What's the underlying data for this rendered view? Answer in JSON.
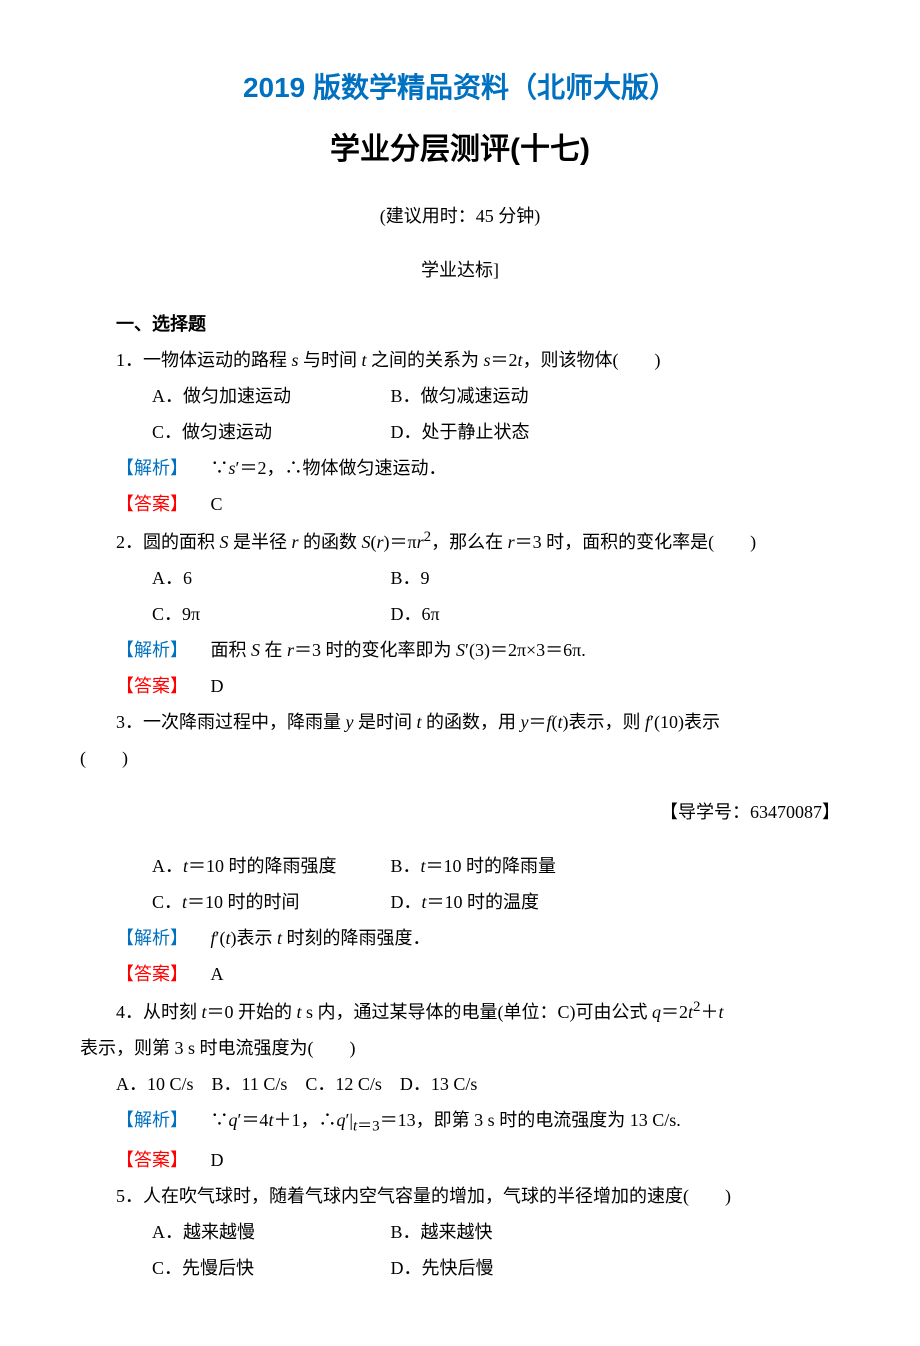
{
  "colors": {
    "blue": "#0070c0",
    "red": "#ff0000",
    "black": "#000000",
    "background": "#ffffff"
  },
  "font": {
    "body_family": "SimSun",
    "heading_family": "SimHei",
    "body_size_pt": 14,
    "title_blue_size_pt": 22,
    "title_black_size_pt": 24,
    "line_height": 2.0
  },
  "header": {
    "edition": "2019 版数学精品资料（北师大版）",
    "title": "学业分层测评(十七)",
    "time_note": "(建议用时：45 分钟)",
    "section_tag": "学业达标]"
  },
  "section_heading": "一、选择题",
  "q1": {
    "stem": "1．一物体运动的路程 <span class=\"it\">s</span> 与时间 <span class=\"it\">t</span> 之间的关系为 <span class=\"it\">s</span>＝2<span class=\"it\">t</span>，则该物体(　　)",
    "optA": "A．做匀加速运动",
    "optB": "B．做匀减速运动",
    "optC": "C．做匀速运动",
    "optD": "D．处于静止状态",
    "analysis_label": "【解析】",
    "analysis": "∵<span class=\"it\">s</span>′＝2，∴物体做匀速运动．",
    "answer_label": "【答案】",
    "answer": "C"
  },
  "q2": {
    "stem": "2．圆的面积 <span class=\"it\">S</span> 是半径 <span class=\"it\">r</span> 的函数 <span class=\"it\">S</span>(<span class=\"it\">r</span>)＝π<span class=\"it\">r</span><sup>2</sup>，那么在 <span class=\"it\">r</span>＝3 时，面积的变化率是(　　)",
    "optA": "A．6",
    "optB": "B．9",
    "optC": "C．9π",
    "optD": "D．6π",
    "analysis_label": "【解析】",
    "analysis": "面积 <span class=\"it\">S</span> 在 <span class=\"it\">r</span>＝3 时的变化率即为 <span class=\"it\">S</span>′(3)＝2π×3＝6π.",
    "answer_label": "【答案】",
    "answer": "D"
  },
  "q3": {
    "stem_line1": "3．一次降雨过程中，降雨量 <span class=\"it\">y</span> 是时间 <span class=\"it\">t</span> 的函数，用 <span class=\"it\">y</span>＝<span class=\"it\">f</span>(<span class=\"it\">t</span>)表示，则 <span class=\"it\">f</span>′(10)表示",
    "stem_line2": "(　　)",
    "ref": "【导学号：63470087】",
    "optA": "A．<span class=\"it\">t</span>＝10 时的降雨强度",
    "optB": "B．<span class=\"it\">t</span>＝10 时的降雨量",
    "optC": "C．<span class=\"it\">t</span>＝10 时的时间",
    "optD": "D．<span class=\"it\">t</span>＝10 时的温度",
    "analysis_label": "【解析】",
    "analysis": "<span class=\"it\">f</span>′(<span class=\"it\">t</span>)表示 <span class=\"it\">t</span> 时刻的降雨强度．",
    "answer_label": "【答案】",
    "answer": "A"
  },
  "q4": {
    "stem_line1": "4．从时刻 <span class=\"it\">t</span>＝0 开始的 <span class=\"it\">t</span> s 内，通过某导体的电量(单位：C)可由公式 <span class=\"it\">q</span>＝2<span class=\"it\">t</span><sup>2</sup>＋<span class=\"it\">t</span>",
    "stem_line2": "表示，则第 3 s 时电流强度为(　　)",
    "options": "A．10 C/s　B．11 C/s　C．12 C/s　D．13 C/s",
    "analysis_label": "【解析】",
    "analysis": "∵<span class=\"it\">q</span>′＝4<span class=\"it\">t</span>＋1，∴<span class=\"it\">q</span>′|<sub><span class=\"it\">t</span>＝3</sub>＝13，即第 3 s 时的电流强度为 13 C/s.",
    "answer_label": "【答案】",
    "answer": "D"
  },
  "q5": {
    "stem": "5．人在吹气球时，随着气球内空气容量的增加，气球的半径增加的速度(　　)",
    "optA": "A．越来越慢",
    "optB": "B．越来越快",
    "optC": "C．先慢后快",
    "optD": "D．先快后慢"
  }
}
